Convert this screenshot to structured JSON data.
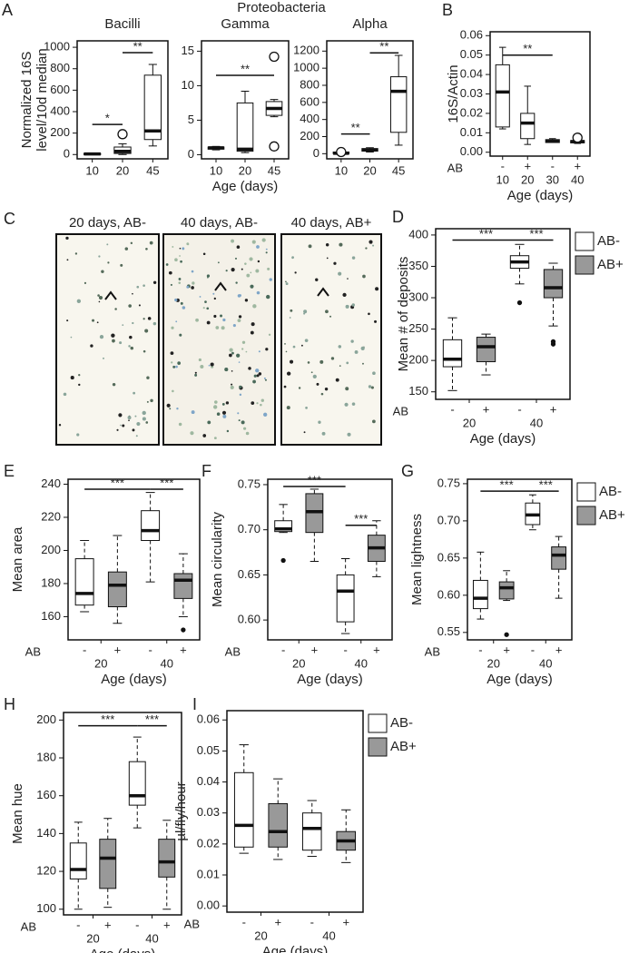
{
  "micrographs": {
    "panel": "C",
    "captions": [
      "20 days, AB-",
      "40 days, AB-",
      "40 days, AB+"
    ]
  },
  "chart_data": [
    {
      "type": "box",
      "panel": "A",
      "title": "Bacilli",
      "ylabel": [
        "Normalized 16S",
        "level/10d median"
      ],
      "categories": [
        "10",
        "20",
        "45"
      ],
      "ylim": [
        -40,
        1060
      ],
      "yticks": [
        0,
        200,
        400,
        600,
        800,
        1000
      ],
      "flier_style": "open",
      "whisker_style": "solid",
      "boxes": [
        {
          "q1": 0,
          "median": 5,
          "q3": 10,
          "whislo": 0,
          "whishi": 15,
          "fliers": [],
          "color": "#ffffff"
        },
        {
          "q1": 10,
          "median": 30,
          "q3": 70,
          "whislo": 0,
          "whishi": 100,
          "fliers": [
            190
          ],
          "color": "#ffffff"
        },
        {
          "q1": 140,
          "median": 220,
          "q3": 740,
          "whislo": 80,
          "whishi": 840,
          "fliers": [],
          "color": "#ffffff"
        }
      ],
      "annotations": [
        {
          "text": "*",
          "from": 0,
          "to": 1,
          "y": 280
        },
        {
          "text": "**",
          "from": 1,
          "to": 2,
          "y": 950
        }
      ]
    },
    {
      "type": "box",
      "supertitle": "Proteobacteria",
      "title": "Gamma",
      "xlabel": "Age (days)",
      "categories": [
        "10",
        "20",
        "45"
      ],
      "ylim": [
        -0.6,
        16.5
      ],
      "yticks": [
        0,
        5,
        10,
        15
      ],
      "flier_style": "open",
      "whisker_style": "solid",
      "boxes": [
        {
          "q1": 0.8,
          "median": 1,
          "q3": 1.1,
          "whislo": 0.7,
          "whishi": 1.2,
          "fliers": [],
          "color": "#ffffff"
        },
        {
          "q1": 0.5,
          "median": 0.8,
          "q3": 7.5,
          "whislo": 0.3,
          "whishi": 9.2,
          "fliers": [],
          "color": "#ffffff"
        },
        {
          "q1": 5.7,
          "median": 6.7,
          "q3": 7.7,
          "whislo": 5.5,
          "whishi": 8.0,
          "fliers": [
            14.2,
            1.2
          ],
          "color": "#ffffff"
        }
      ],
      "annotations": [
        {
          "text": "**",
          "from": 0,
          "to": 2,
          "y": 11.5
        }
      ]
    },
    {
      "type": "box",
      "title": "Alpha",
      "categories": [
        "10",
        "20",
        "45"
      ],
      "ylim": [
        -60,
        1320
      ],
      "yticks": [
        0,
        200,
        400,
        600,
        800,
        1000,
        1200
      ],
      "flier_style": "open",
      "whisker_style": "solid",
      "boxes": [
        {
          "q1": 0,
          "median": 5,
          "q3": 20,
          "whislo": 0,
          "whishi": 30,
          "fliers": [
            20
          ],
          "color": "#ffffff"
        },
        {
          "q1": 30,
          "median": 45,
          "q3": 60,
          "whislo": 20,
          "whishi": 70,
          "fliers": [],
          "color": "#ffffff"
        },
        {
          "q1": 250,
          "median": 730,
          "q3": 900,
          "whislo": 100,
          "whishi": 1150,
          "fliers": [],
          "color": "#ffffff"
        }
      ],
      "annotations": [
        {
          "text": "**",
          "from": 0,
          "to": 1,
          "y": 230
        },
        {
          "text": "**",
          "from": 1,
          "to": 2,
          "y": 1180
        }
      ]
    },
    {
      "type": "box",
      "panel": "B",
      "ylabel": "16S/Actin",
      "xlabel": "Age (days)",
      "ab_label": "AB",
      "ab": [
        "-",
        "+",
        "-",
        "+"
      ],
      "categories": [
        "10",
        "20",
        "30",
        "40"
      ],
      "ylim": [
        -0.002,
        0.062
      ],
      "yticks": [
        {
          "value": 0,
          "label": "0.00"
        },
        0.01,
        0.02,
        0.03,
        0.04,
        0.05,
        0.06
      ],
      "flier_style": "open",
      "whisker_style": "solid",
      "boxes": [
        {
          "q1": 0.013,
          "median": 0.031,
          "q3": 0.045,
          "whislo": 0.012,
          "whishi": 0.054,
          "fliers": [],
          "color": "#ffffff"
        },
        {
          "q1": 0.007,
          "median": 0.015,
          "q3": 0.02,
          "whislo": 0.004,
          "whishi": 0.034,
          "fliers": [],
          "color": "#ffffff"
        },
        {
          "q1": 0.005,
          "median": 0.0058,
          "q3": 0.0065,
          "whislo": 0.005,
          "whishi": 0.007,
          "fliers": [],
          "color": "#ffffff"
        },
        {
          "q1": 0.0048,
          "median": 0.0055,
          "q3": 0.006,
          "whislo": 0.0045,
          "whishi": 0.0065,
          "fliers": [
            0.0075
          ],
          "color": "#ffffff"
        }
      ],
      "annotations": [
        {
          "text": "**",
          "from": 0,
          "to": 2,
          "y": 0.05
        }
      ]
    },
    {
      "type": "box",
      "panel": "D",
      "ylabel": "Mean # of deposits",
      "xlabel": "Age (days)",
      "ab_label": "AB",
      "ab": [
        "-",
        "+",
        "-",
        "+"
      ],
      "categories": [
        "20",
        "40"
      ],
      "ylim": [
        138,
        410
      ],
      "yticks": [
        150,
        200,
        250,
        300,
        350,
        400
      ],
      "flier_style": "filled",
      "whisker_style": "dashed",
      "legend": [
        {
          "name": "AB-",
          "color": "#ffffff"
        },
        {
          "name": "AB+",
          "color": "#999999"
        }
      ],
      "boxes": [
        {
          "q1": 190,
          "median": 202,
          "q3": 233,
          "whislo": 152,
          "whishi": 268,
          "fliers": [],
          "color": "#ffffff"
        },
        {
          "q1": 198,
          "median": 222,
          "q3": 237,
          "whislo": 177,
          "whishi": 242,
          "fliers": [],
          "color": "#999999"
        },
        {
          "q1": 347,
          "median": 357,
          "q3": 367,
          "whislo": 322,
          "whishi": 385,
          "fliers": [
            292
          ],
          "color": "#ffffff"
        },
        {
          "q1": 300,
          "median": 316,
          "q3": 345,
          "whislo": 255,
          "whishi": 355,
          "fliers": [
            230,
            226
          ],
          "color": "#999999"
        }
      ],
      "annotations": [
        {
          "text": "***",
          "from": 0,
          "to": 2,
          "y": 392
        },
        {
          "text": "***",
          "from": 2,
          "to": 3,
          "y": 392
        }
      ]
    },
    {
      "type": "box",
      "panel": "E",
      "ylabel": "Mean area",
      "xlabel": "Age (days)",
      "ab_label": "AB",
      "ab": [
        "-",
        "+",
        "-",
        "+"
      ],
      "categories": [
        "20",
        "40"
      ],
      "ylim": [
        146,
        243
      ],
      "yticks": [
        160,
        180,
        200,
        220,
        240
      ],
      "flier_style": "filled",
      "whisker_style": "dashed",
      "boxes": [
        {
          "q1": 167,
          "median": 174,
          "q3": 195,
          "whislo": 163,
          "whishi": 206,
          "fliers": [],
          "color": "#ffffff"
        },
        {
          "q1": 166,
          "median": 179,
          "q3": 187,
          "whislo": 156,
          "whishi": 209,
          "fliers": [],
          "color": "#999999"
        },
        {
          "q1": 206,
          "median": 212,
          "q3": 224,
          "whislo": 181,
          "whishi": 235,
          "fliers": [],
          "color": "#ffffff"
        },
        {
          "q1": 171,
          "median": 182,
          "q3": 186,
          "whislo": 160,
          "whishi": 198,
          "fliers": [
            152
          ],
          "color": "#999999"
        }
      ],
      "annotations": [
        {
          "text": "***",
          "from": 0,
          "to": 2,
          "y": 237
        },
        {
          "text": "***",
          "from": 2,
          "to": 3,
          "y": 237
        }
      ]
    },
    {
      "type": "box",
      "panel": "F",
      "ylabel": "Mean circularity",
      "xlabel": "Age (days)",
      "ab_label": "AB",
      "ab": [
        "-",
        "+",
        "-",
        "+"
      ],
      "categories": [
        "20",
        "40"
      ],
      "ylim": [
        0.578,
        0.756
      ],
      "yticks": [
        {
          "value": 0.6,
          "label": "0.60"
        },
        0.65,
        {
          "value": 0.7,
          "label": "0.70"
        },
        0.75
      ],
      "flier_style": "filled",
      "whisker_style": "dashed",
      "boxes": [
        {
          "q1": 0.698,
          "median": 0.701,
          "q3": 0.71,
          "whislo": 0.697,
          "whishi": 0.728,
          "fliers": [
            0.666
          ],
          "color": "#ffffff"
        },
        {
          "q1": 0.697,
          "median": 0.72,
          "q3": 0.74,
          "whislo": 0.665,
          "whishi": 0.745,
          "fliers": [],
          "color": "#999999"
        },
        {
          "q1": 0.598,
          "median": 0.632,
          "q3": 0.65,
          "whislo": 0.585,
          "whishi": 0.668,
          "fliers": [],
          "color": "#ffffff"
        },
        {
          "q1": 0.665,
          "median": 0.68,
          "q3": 0.694,
          "whislo": 0.648,
          "whishi": 0.71,
          "fliers": [],
          "color": "#999999"
        }
      ],
      "annotations": [
        {
          "text": "***",
          "from": 0,
          "to": 2,
          "y": 0.748
        },
        {
          "text": "***",
          "from": 2,
          "to": 3,
          "y": 0.705
        }
      ]
    },
    {
      "type": "box",
      "panel": "G",
      "ylabel": "Mean lightness",
      "xlabel": "Age (days)",
      "ab_label": "AB",
      "ab": [
        "-",
        "+",
        "-",
        "+"
      ],
      "categories": [
        "20",
        "40"
      ],
      "ylim": [
        0.54,
        0.756
      ],
      "yticks": [
        0.55,
        {
          "value": 0.6,
          "label": "0.60"
        },
        0.65,
        {
          "value": 0.7,
          "label": "0.70"
        },
        0.75
      ],
      "flier_style": "filled",
      "whisker_style": "dashed",
      "legend": [
        {
          "name": "AB-",
          "color": "#ffffff"
        },
        {
          "name": "AB+",
          "color": "#999999"
        }
      ],
      "boxes": [
        {
          "q1": 0.582,
          "median": 0.596,
          "q3": 0.62,
          "whislo": 0.568,
          "whishi": 0.658,
          "fliers": [],
          "color": "#ffffff"
        },
        {
          "q1": 0.595,
          "median": 0.61,
          "q3": 0.618,
          "whislo": 0.593,
          "whishi": 0.633,
          "fliers": [
            0.547
          ],
          "color": "#999999"
        },
        {
          "q1": 0.695,
          "median": 0.708,
          "q3": 0.724,
          "whislo": 0.688,
          "whishi": 0.735,
          "fliers": [],
          "color": "#ffffff"
        },
        {
          "q1": 0.635,
          "median": 0.654,
          "q3": 0.665,
          "whislo": 0.596,
          "whishi": 0.679,
          "fliers": [],
          "color": "#999999"
        }
      ],
      "annotations": [
        {
          "text": "***",
          "from": 0,
          "to": 2,
          "y": 0.74
        },
        {
          "text": "***",
          "from": 2,
          "to": 3,
          "y": 0.74
        }
      ]
    },
    {
      "type": "box",
      "panel": "H",
      "ylabel": "Mean hue",
      "xlabel": "Age (days)",
      "ab_label": "AB",
      "ab": [
        "-",
        "+",
        "-",
        "+"
      ],
      "categories": [
        "20",
        "40"
      ],
      "ylim": [
        97,
        204
      ],
      "yticks": [
        100,
        120,
        140,
        160,
        180,
        200
      ],
      "flier_style": "filled",
      "whisker_style": "dashed",
      "boxes": [
        {
          "q1": 116,
          "median": 121,
          "q3": 135,
          "whislo": 100,
          "whishi": 146,
          "fliers": [],
          "color": "#ffffff"
        },
        {
          "q1": 111,
          "median": 127,
          "q3": 137,
          "whislo": 101,
          "whishi": 148,
          "fliers": [],
          "color": "#999999"
        },
        {
          "q1": 155,
          "median": 160,
          "q3": 178,
          "whislo": 143,
          "whishi": 191,
          "fliers": [],
          "color": "#ffffff"
        },
        {
          "q1": 117,
          "median": 125,
          "q3": 137,
          "whislo": 100,
          "whishi": 147,
          "fliers": [],
          "color": "#999999"
        }
      ],
      "annotations": [
        {
          "text": "***",
          "from": 0,
          "to": 2,
          "y": 197
        },
        {
          "text": "***",
          "from": 2,
          "to": 3,
          "y": 197
        }
      ]
    },
    {
      "type": "box",
      "panel": "I",
      "ylabel": "µl/fly/hour",
      "xlabel": "Age (days)",
      "ab_label": "AB",
      "ab": [
        "-",
        "+",
        "-",
        "+"
      ],
      "categories": [
        "20",
        "40"
      ],
      "ylim": [
        -0.002,
        0.063
      ],
      "yticks": [
        {
          "value": 0,
          "label": "0.00"
        },
        0.01,
        0.02,
        0.03,
        0.04,
        0.05,
        0.06
      ],
      "flier_style": "filled",
      "whisker_style": "dashed",
      "legend": [
        {
          "name": "AB-",
          "color": "#ffffff"
        },
        {
          "name": "AB+",
          "color": "#999999"
        }
      ],
      "boxes": [
        {
          "q1": 0.019,
          "median": 0.026,
          "q3": 0.043,
          "whislo": 0.017,
          "whishi": 0.052,
          "fliers": [],
          "color": "#ffffff"
        },
        {
          "q1": 0.019,
          "median": 0.024,
          "q3": 0.033,
          "whislo": 0.015,
          "whishi": 0.041,
          "fliers": [],
          "color": "#999999"
        },
        {
          "q1": 0.018,
          "median": 0.025,
          "q3": 0.03,
          "whislo": 0.016,
          "whishi": 0.034,
          "fliers": [],
          "color": "#ffffff"
        },
        {
          "q1": 0.018,
          "median": 0.021,
          "q3": 0.024,
          "whislo": 0.014,
          "whishi": 0.031,
          "fliers": [],
          "color": "#999999"
        }
      ],
      "annotations": []
    }
  ]
}
